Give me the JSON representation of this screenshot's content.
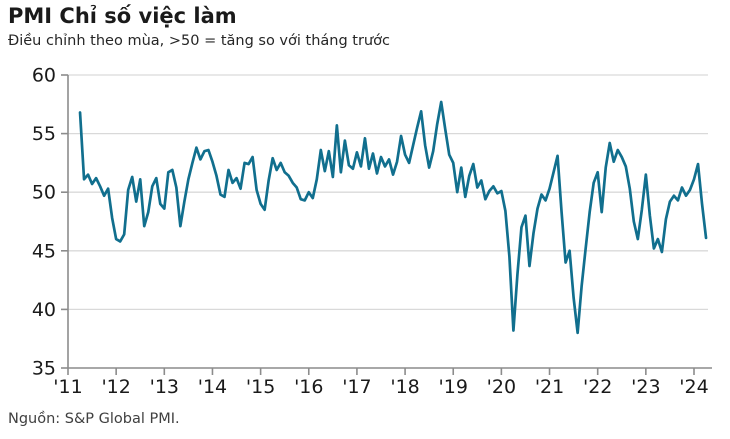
{
  "chart_data": {
    "type": "line",
    "title": "PMI Chỉ số việc làm",
    "subtitle": "Điều chỉnh theo mùa, >50 = tăng so với tháng trước",
    "source": "Nguồn: S&P Global PMI.",
    "xlabel": "",
    "ylabel": "",
    "ylim": [
      35,
      60
    ],
    "y_ticks": [
      35,
      40,
      45,
      50,
      55,
      60
    ],
    "x_tick_labels": [
      "'11",
      "'12",
      "'13",
      "'14",
      "'15",
      "'16",
      "'17",
      "'18",
      "'19",
      "'20",
      "'21",
      "'22",
      "'23",
      "'24"
    ],
    "grid": "horizontal",
    "legend": "none",
    "colors": {
      "line": "#116f8e",
      "grid": "#d9d9d9",
      "axis": "#8c8c8c",
      "tick_label": "#1a1a1a"
    },
    "series": [
      {
        "name": "PMI Chỉ số việc làm",
        "frequency": "monthly",
        "start": "2011-04",
        "end": "2024-04",
        "values": [
          56.8,
          51.1,
          51.5,
          50.7,
          51.2,
          50.5,
          49.7,
          50.3,
          47.8,
          46.0,
          45.8,
          46.4,
          50.2,
          51.3,
          49.2,
          51.1,
          47.1,
          48.3,
          50.5,
          51.2,
          49.0,
          48.6,
          51.7,
          51.9,
          50.4,
          47.1,
          49.2,
          51.1,
          52.5,
          53.8,
          52.8,
          53.5,
          53.6,
          52.6,
          51.4,
          49.8,
          49.6,
          51.9,
          50.8,
          51.2,
          50.3,
          52.5,
          52.4,
          53.0,
          50.2,
          49.0,
          48.5,
          51.0,
          52.9,
          51.9,
          52.5,
          51.7,
          51.4,
          50.8,
          50.4,
          49.4,
          49.3,
          50.0,
          49.5,
          51.1,
          53.6,
          51.8,
          53.5,
          51.3,
          55.7,
          51.7,
          54.4,
          52.3,
          52.0,
          53.4,
          52.2,
          54.6,
          52.0,
          53.3,
          51.6,
          53.0,
          52.2,
          52.8,
          51.5,
          52.6,
          54.8,
          53.2,
          52.5,
          54.0,
          55.5,
          56.9,
          54.0,
          52.1,
          53.5,
          55.8,
          57.7,
          55.4,
          53.2,
          52.5,
          50.0,
          52.1,
          49.6,
          51.4,
          52.4,
          50.4,
          51.0,
          49.4,
          50.1,
          50.5,
          49.9,
          50.1,
          48.4,
          44.5,
          38.2,
          43.0,
          47.0,
          48.0,
          43.7,
          46.5,
          48.6,
          49.8,
          49.3,
          50.3,
          51.7,
          53.1,
          48.3,
          44.0,
          45.0,
          41.0,
          38.0,
          42.0,
          45.2,
          48.3,
          50.8,
          51.7,
          48.3,
          52.1,
          54.2,
          52.6,
          53.6,
          53.0,
          52.2,
          50.3,
          47.5,
          46.0,
          48.5,
          51.5,
          48.0,
          45.2,
          46.0,
          44.9,
          47.7,
          49.2,
          49.7,
          49.3,
          50.4,
          49.7,
          50.2,
          51.1,
          52.4,
          49.0,
          46.1
        ]
      }
    ]
  }
}
